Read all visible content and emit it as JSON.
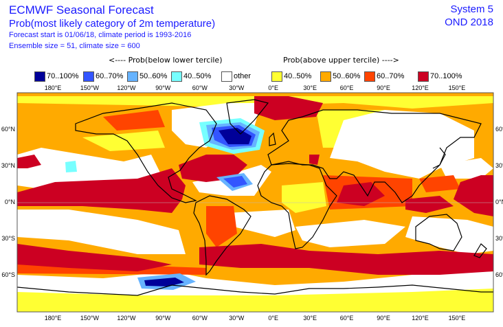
{
  "header": {
    "title": "ECMWF Seasonal Forecast",
    "subtitle": "Prob(most likely category of 2m temperature)",
    "forecast_info": "Forecast start is 01/06/18, climate period is 1993-2016",
    "ensemble_info": "Ensemble size = 51, climate size = 600",
    "system": "System 5",
    "season": "OND 2018"
  },
  "legend": {
    "below_label": "<---- Prob(below lower tercile)",
    "above_label": "Prob(above upper tercile) ---->",
    "items": [
      {
        "label": "70..100%",
        "color": "#000099"
      },
      {
        "label": "60..70%",
        "color": "#3355ff"
      },
      {
        "label": "50..60%",
        "color": "#66b3ff"
      },
      {
        "label": "40..50%",
        "color": "#77ffff"
      },
      {
        "label": "other",
        "color": "#ffffff"
      },
      {
        "label": "40..50%",
        "color": "#ffff33"
      },
      {
        "label": "50..60%",
        "color": "#ffaa00"
      },
      {
        "label": "60..70%",
        "color": "#ff4400"
      },
      {
        "label": "70..100%",
        "color": "#cc0022"
      }
    ]
  },
  "axes": {
    "lon_labels": [
      "180°E",
      "150°W",
      "120°W",
      "90°W",
      "60°W",
      "30°W",
      "0°E",
      "30°E",
      "60°E",
      "90°E",
      "120°E",
      "150°E"
    ],
    "lat_labels": [
      "60°N",
      "30°N",
      "0°N",
      "30°S",
      "60°S"
    ]
  }
}
